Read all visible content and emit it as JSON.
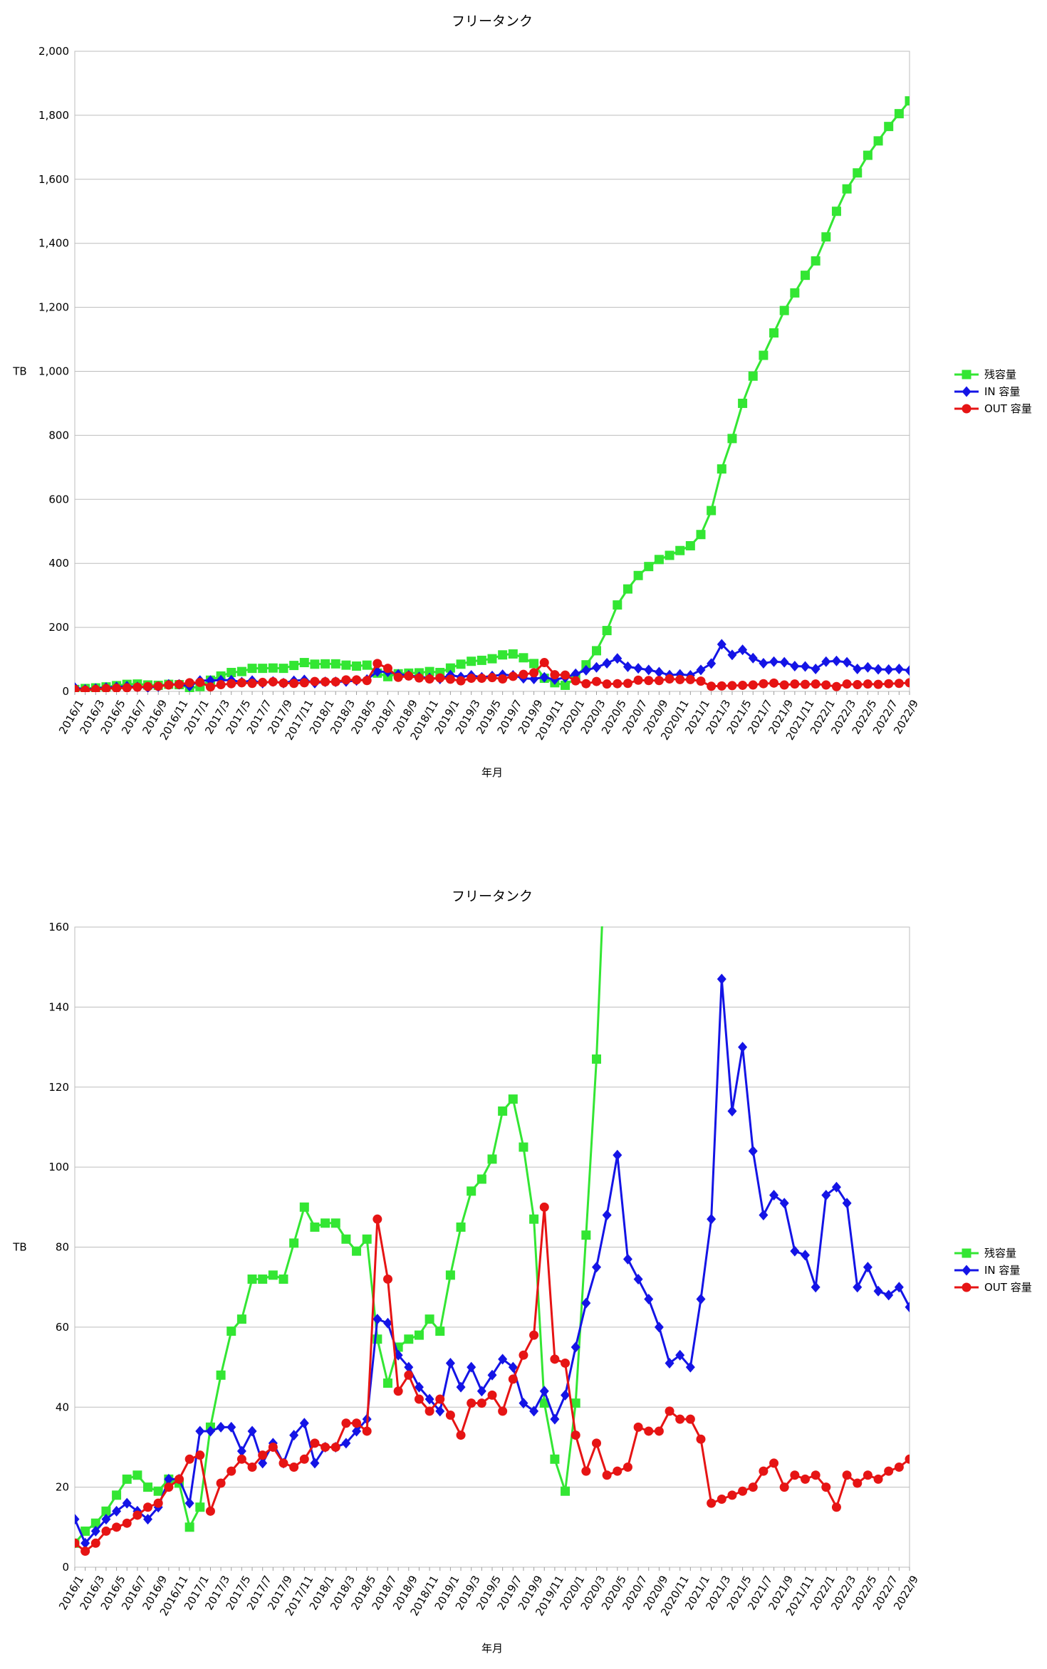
{
  "chart_data": [
    {
      "type": "line",
      "title": "フリータンク",
      "xlabel": "年月",
      "ylabel": "TB",
      "ylim": [
        0,
        2000
      ],
      "yticks": [
        "0",
        "200",
        "400",
        "600",
        "800",
        "1,000",
        "1,200",
        "1,400",
        "1,600",
        "1,800",
        "2,000"
      ],
      "ytick_values": [
        0,
        200,
        400,
        600,
        800,
        1000,
        1200,
        1400,
        1600,
        1800,
        2000
      ],
      "grid": true,
      "legend_position": "right",
      "series_ref": "shared"
    },
    {
      "type": "line",
      "title": "フリータンク",
      "xlabel": "年月",
      "ylabel": "TB",
      "ylim": [
        0,
        160
      ],
      "yticks": [
        "0",
        "20",
        "40",
        "60",
        "80",
        "100",
        "120",
        "140",
        "160"
      ],
      "ytick_values": [
        0,
        20,
        40,
        60,
        80,
        100,
        120,
        140,
        160
      ],
      "grid": true,
      "legend_position": "right",
      "series_ref": "shared"
    }
  ],
  "shared": {
    "x": [
      "2016/1",
      "2016/2",
      "2016/3",
      "2016/4",
      "2016/5",
      "2016/6",
      "2016/7",
      "2016/8",
      "2016/9",
      "2016/10",
      "2016/11",
      "2016/12",
      "2017/1",
      "2017/2",
      "2017/3",
      "2017/4",
      "2017/5",
      "2017/6",
      "2017/7",
      "2017/8",
      "2017/9",
      "2017/10",
      "2017/11",
      "2017/12",
      "2018/1",
      "2018/2",
      "2018/3",
      "2018/4",
      "2018/5",
      "2018/6",
      "2018/7",
      "2018/8",
      "2018/9",
      "2018/10",
      "2018/11",
      "2018/12",
      "2019/1",
      "2019/2",
      "2019/3",
      "2019/4",
      "2019/5",
      "2019/6",
      "2019/7",
      "2019/8",
      "2019/9",
      "2019/10",
      "2019/11",
      "2019/12",
      "2020/1",
      "2020/2",
      "2020/3",
      "2020/4",
      "2020/5",
      "2020/6",
      "2020/7",
      "2020/8",
      "2020/9",
      "2020/10",
      "2020/11",
      "2020/12",
      "2021/1",
      "2021/2",
      "2021/3",
      "2021/4",
      "2021/5",
      "2021/6",
      "2021/7",
      "2021/8",
      "2021/9",
      "2021/10",
      "2021/11",
      "2021/12",
      "2022/1",
      "2022/2",
      "2022/3",
      "2022/4",
      "2022/5",
      "2022/6",
      "2022/7",
      "2022/8",
      "2022/9"
    ],
    "series": [
      {
        "name": "残容量",
        "color": "#33e633",
        "marker": "square",
        "values": [
          6,
          9,
          11,
          14,
          18,
          22,
          23,
          20,
          19,
          22,
          21,
          10,
          15,
          35,
          48,
          59,
          62,
          72,
          72,
          73,
          72,
          81,
          90,
          85,
          86,
          86,
          82,
          79,
          82,
          57,
          46,
          55,
          57,
          58,
          62,
          59,
          73,
          85,
          94,
          97,
          102,
          114,
          117,
          105,
          87,
          41,
          27,
          19,
          41,
          83,
          127,
          190,
          270,
          320,
          362,
          390,
          412,
          425,
          440,
          455,
          490,
          565,
          695,
          790,
          900,
          985,
          1050,
          1120,
          1190,
          1245,
          1300,
          1345,
          1420,
          1500,
          1570,
          1620,
          1675,
          1720,
          1765,
          1805,
          1845
        ]
      },
      {
        "name": "IN 容量",
        "color": "#1414e6",
        "marker": "diamond",
        "values": [
          12,
          6,
          9,
          12,
          14,
          16,
          14,
          12,
          15,
          22,
          22,
          16,
          34,
          34,
          35,
          35,
          29,
          34,
          26,
          31,
          26,
          33,
          36,
          26,
          30,
          30,
          31,
          34,
          37,
          62,
          61,
          53,
          50,
          45,
          42,
          39,
          51,
          45,
          50,
          44,
          48,
          52,
          50,
          41,
          39,
          44,
          37,
          43,
          55,
          66,
          75,
          88,
          103,
          77,
          72,
          67,
          60,
          51,
          53,
          50,
          67,
          87,
          147,
          114,
          130,
          104,
          88,
          93,
          91,
          79,
          78,
          70,
          93,
          95,
          91,
          70,
          75,
          69,
          68,
          70,
          65
        ]
      },
      {
        "name": "OUT 容量",
        "color": "#e61414",
        "marker": "circle",
        "values": [
          6,
          4,
          6,
          9,
          10,
          11,
          13,
          15,
          16,
          20,
          22,
          27,
          28,
          14,
          21,
          24,
          27,
          25,
          28,
          30,
          26,
          25,
          27,
          31,
          30,
          30,
          36,
          36,
          34,
          87,
          72,
          44,
          48,
          42,
          39,
          42,
          38,
          33,
          41,
          41,
          43,
          39,
          47,
          53,
          58,
          90,
          52,
          51,
          33,
          24,
          31,
          23,
          24,
          25,
          35,
          34,
          34,
          39,
          37,
          37,
          32,
          16,
          17,
          18,
          19,
          20,
          24,
          26,
          20,
          23,
          22,
          23,
          20,
          15,
          23,
          21,
          23,
          22,
          24,
          25,
          27
        ]
      }
    ]
  }
}
